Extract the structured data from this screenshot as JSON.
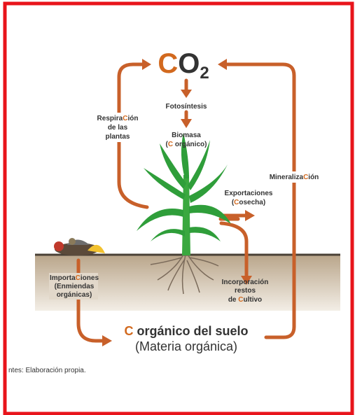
{
  "co2": [
    "C",
    "O",
    "2"
  ],
  "photosynthesis": "Fotosíntesis",
  "biomass": {
    "line1": "Biomasa",
    "line2": [
      "(",
      "C",
      " orgánico)"
    ]
  },
  "respiration": {
    "line1": [
      "Respira",
      "C",
      "ión"
    ],
    "line2": "de las",
    "line3": "plantas"
  },
  "mineralization": [
    "Mineraliza",
    "C",
    "ión"
  ],
  "exports": {
    "line1": "Exportaciones",
    "line2": [
      "(",
      "C",
      "osecha)"
    ]
  },
  "incorporation": {
    "line1": "Incorporación",
    "line2": "restos",
    "line3": [
      "de ",
      "C",
      "ultivo"
    ]
  },
  "imports": {
    "line1": [
      "Importa",
      "C",
      "iones"
    ],
    "line2": "(Enmiendas",
    "line3": "orgánicas)"
  },
  "soil_carbon": {
    "line1": [
      "C",
      " orgánico del suelo"
    ],
    "line2": "(Materia orgánica)"
  },
  "source": "ntes: Elaboración propia."
}
